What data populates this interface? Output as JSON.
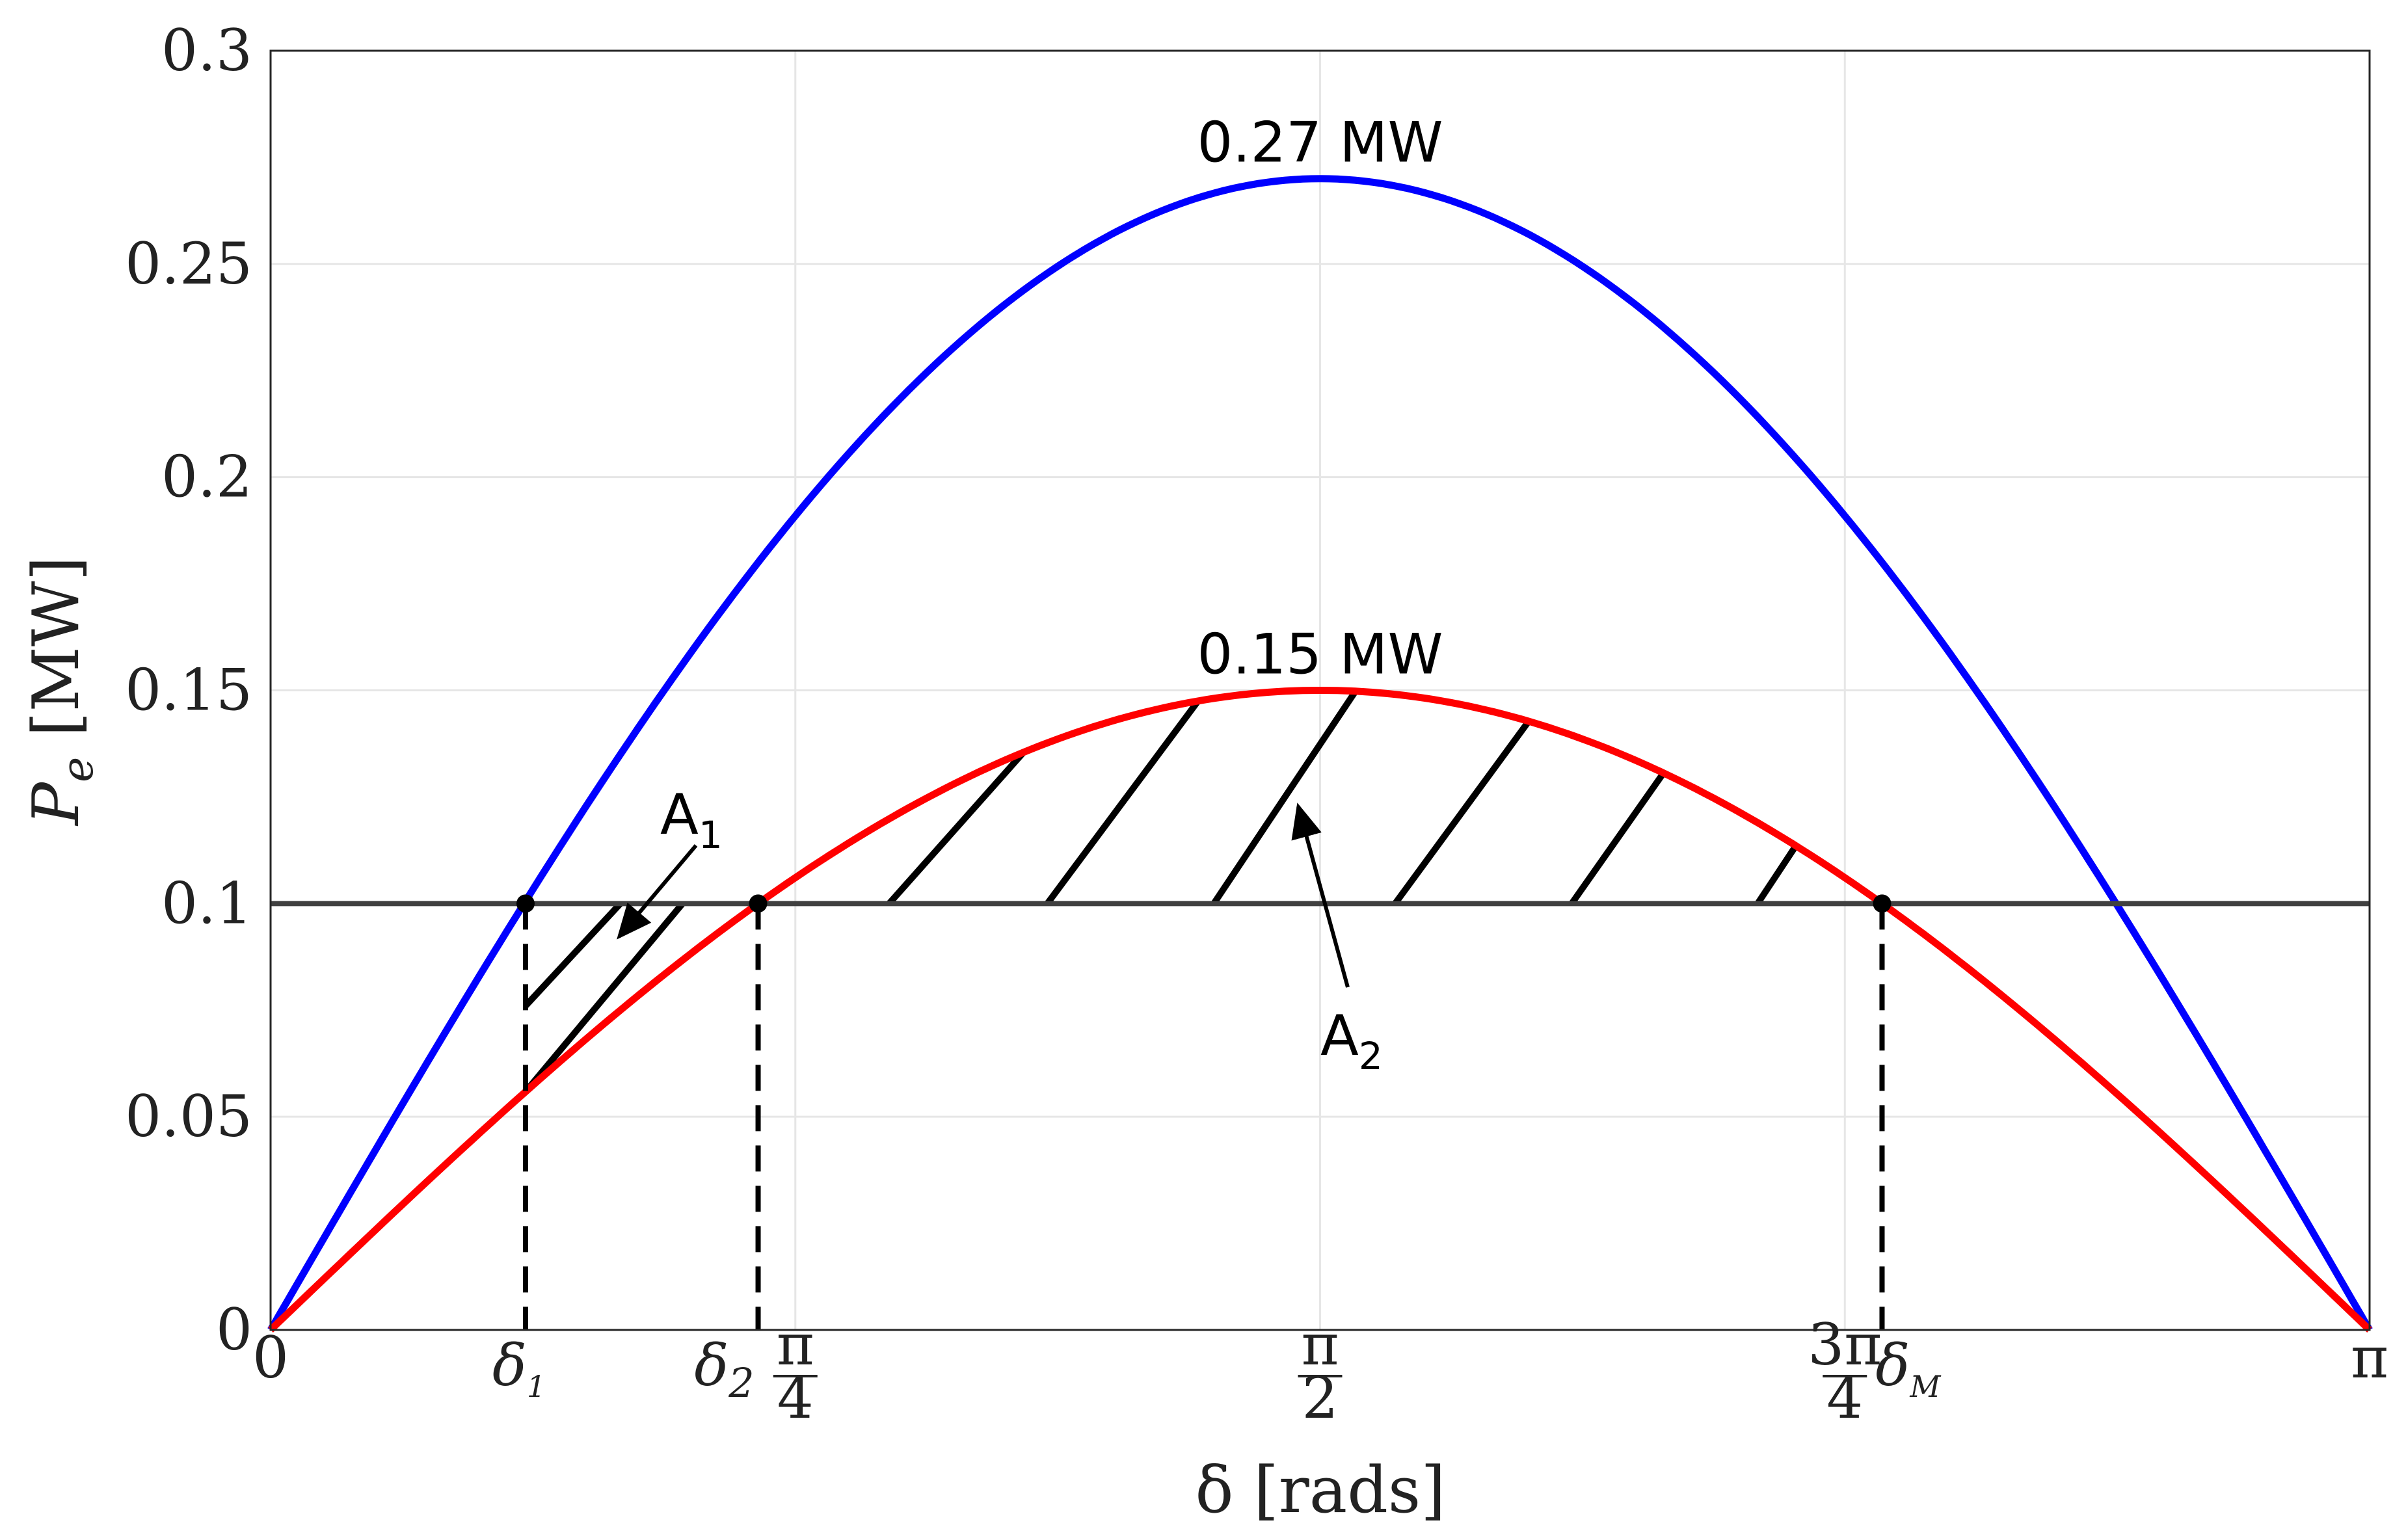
{
  "chart_data": {
    "type": "line",
    "title": "",
    "xlabel": "δ [rads]",
    "ylabel": "P_e [MW]",
    "ylabel_main": "P",
    "ylabel_sub": "e",
    "ylabel_unit": " [MW]",
    "xlim": [
      0,
      3.14159
    ],
    "ylim": [
      0,
      0.3
    ],
    "grid": true,
    "yticks": [
      {
        "value": 0,
        "label": "0"
      },
      {
        "value": 0.05,
        "label": "0.05"
      },
      {
        "value": 0.1,
        "label": "0.1"
      },
      {
        "value": 0.15,
        "label": "0.15"
      },
      {
        "value": 0.2,
        "label": "0.2"
      },
      {
        "value": 0.25,
        "label": "0.25"
      },
      {
        "value": 0.3,
        "label": "0.3"
      }
    ],
    "xticks": [
      {
        "value": 0,
        "label": "0"
      },
      {
        "value": 0.7854,
        "num": "π",
        "den": "4"
      },
      {
        "value": 1.5708,
        "num": "π",
        "den": "2"
      },
      {
        "value": 2.3562,
        "num": "3π",
        "den": "4"
      },
      {
        "value": 3.14159,
        "label": "π"
      }
    ],
    "series": [
      {
        "amplitude": 0.27,
        "color": "#0000ff"
      },
      {
        "amplitude": 0.15,
        "color": "#ff0000"
      },
      {
        "constant": 0.1,
        "color": "#404040"
      }
    ],
    "delta_markers": [
      {
        "value": 0.3816,
        "label": "δ",
        "sub": "1",
        "y": 0.1,
        "from_y": 0.0556
      },
      {
        "value": 0.7297,
        "label": "δ",
        "sub": "2",
        "y": 0.1
      },
      {
        "value": 2.4119,
        "label": "δ",
        "sub": "M",
        "y": 0.1
      }
    ],
    "annotations": [
      {
        "text": "0.27 MW",
        "x": 1.5708,
        "y": 0.27
      },
      {
        "text": "0.15 MW",
        "x": 1.5708,
        "y": 0.15
      },
      {
        "text": "A",
        "sub": "1",
        "region": "accelerating"
      },
      {
        "text": "A",
        "sub": "2",
        "region": "decelerating"
      }
    ]
  }
}
